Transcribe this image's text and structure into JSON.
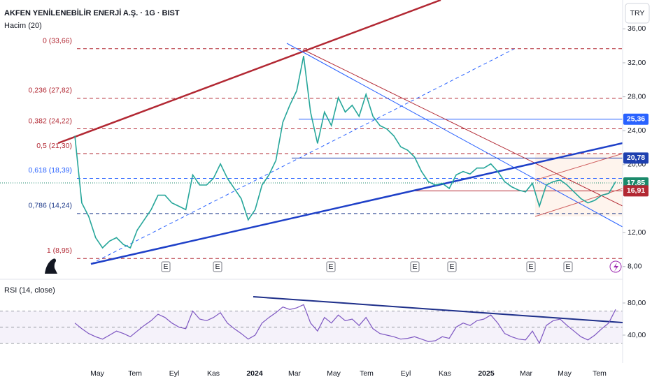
{
  "header": {
    "title": "AKFEN YENİLENEBİLİR ENERJİ A.Ş. · 1G · BIST",
    "volume_label": "Hacim (20)",
    "rsi_label": "RSI (14, close)",
    "currency": "TRY"
  },
  "chart_data": [
    {
      "type": "line",
      "color": "#26a69a",
      "values": [
        23.4,
        15.5,
        13.9,
        11.4,
        10.2,
        11,
        11.4,
        10.6,
        10.2,
        12.3,
        13.5,
        14.7,
        16.4,
        16.4,
        15.5,
        15.1,
        14.7,
        18.8,
        17.6,
        17.6,
        18.4,
        20.1,
        18.4,
        17.2,
        16,
        13.5,
        14.7,
        17.6,
        18.8,
        20.5,
        25,
        27,
        28.7,
        32.8,
        26.2,
        22.5,
        26.2,
        24.6,
        27.9,
        26.2,
        27,
        25.7,
        28.3,
        25.7,
        24.6,
        24.2,
        23.4,
        22.1,
        21.7,
        20.9,
        19.2,
        18,
        17.6,
        17.8,
        17.2,
        18.8,
        19.2,
        18.9,
        19.6,
        19.6,
        20.1,
        19.2,
        18,
        17.4,
        17,
        16.8,
        17.8,
        15.1,
        17.6,
        18,
        18.2,
        17.6,
        16.8,
        16,
        15.5,
        15.8,
        16.4,
        16.6,
        18
      ],
      "ylim": [
        6.5,
        39.4
      ],
      "yticks": [
        {
          "value": 8,
          "label": "8,00"
        },
        {
          "value": 12,
          "label": "12,00"
        },
        {
          "value": 20,
          "label": "20,00"
        },
        {
          "value": 24,
          "label": "24,00"
        },
        {
          "value": 28,
          "label": "28,00"
        },
        {
          "value": 32,
          "label": "32,00"
        },
        {
          "value": 36,
          "label": "36,00"
        }
      ],
      "levels": [
        {
          "label": "0 (33,66)",
          "value": 33.66,
          "color": "#b22833"
        },
        {
          "label": "0,236 (27,82)",
          "value": 27.82,
          "color": "#b22833"
        },
        {
          "label": "0,382 (24,22)",
          "value": 24.22,
          "color": "#b22833"
        },
        {
          "label": "0,5 (21,30)",
          "value": 21.3,
          "color": "#b22833"
        },
        {
          "label": "0,618 (18,39)",
          "value": 18.39,
          "color": "#2962ff"
        },
        {
          "label": "0,786 (14,24)",
          "value": 14.24,
          "color": "#1e3a8a"
        },
        {
          "label": "1 (8,95)",
          "value": 8.95,
          "color": "#b22833"
        }
      ],
      "price_labels": [
        {
          "value": 25.36,
          "label": "25,36",
          "color": "#2962ff"
        },
        {
          "value": 20.78,
          "label": "20,78",
          "color": "#1e40af"
        },
        {
          "value": 17.85,
          "label": "17,85",
          "color": "#1b8a6b"
        },
        {
          "value": 16.91,
          "label": "16,91",
          "color": "#b22833"
        }
      ],
      "events": [
        "E",
        "E",
        "E",
        "E",
        "E",
        "E",
        "E"
      ]
    },
    {
      "type": "line",
      "color": "#7e57c2",
      "values": [
        55,
        48,
        42,
        38,
        35,
        40,
        45,
        42,
        38,
        45,
        52,
        58,
        66,
        62,
        55,
        50,
        48,
        70,
        60,
        58,
        62,
        68,
        55,
        48,
        42,
        35,
        40,
        55,
        62,
        68,
        75,
        72,
        74,
        78,
        55,
        45,
        62,
        55,
        65,
        58,
        60,
        52,
        62,
        48,
        42,
        40,
        38,
        35,
        36,
        38,
        35,
        32,
        33,
        38,
        36,
        50,
        55,
        52,
        58,
        60,
        65,
        55,
        42,
        38,
        35,
        34,
        45,
        30,
        52,
        58,
        60,
        52,
        45,
        38,
        34,
        40,
        48,
        55,
        72
      ],
      "ylim": [
        5.2,
        105.2
      ],
      "yticks": [
        {
          "value": 80,
          "label": "80,00"
        },
        {
          "value": 40,
          "label": "40,00"
        }
      ],
      "bands": [
        70,
        50,
        30
      ]
    }
  ],
  "time_axis": [
    "May",
    "Tem",
    "Eyl",
    "Kas",
    "2024",
    "Mar",
    "May",
    "Tem",
    "Eyl",
    "Kas",
    "2025",
    "Mar",
    "May",
    "Tem"
  ]
}
